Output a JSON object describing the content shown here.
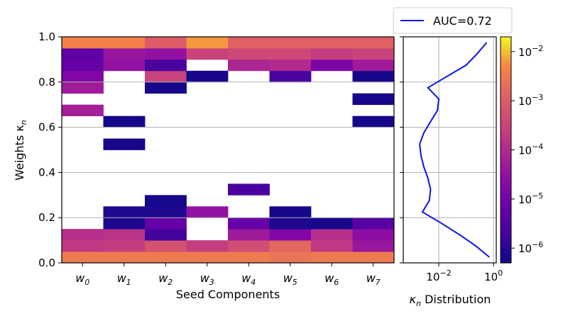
{
  "chart_data": [
    {
      "type": "heatmap",
      "xlabel": "Seed Components",
      "ylabel": "Weights κ",
      "ylabel_sub": "n",
      "xticks": [
        {
          "base": "w",
          "sub": "0"
        },
        {
          "base": "w",
          "sub": "1"
        },
        {
          "base": "w",
          "sub": "2"
        },
        {
          "base": "w",
          "sub": "3"
        },
        {
          "base": "w",
          "sub": "4"
        },
        {
          "base": "w",
          "sub": "5"
        },
        {
          "base": "w",
          "sub": "6"
        },
        {
          "base": "w",
          "sub": "7"
        }
      ],
      "yticks": [
        "0.0",
        "0.2",
        "0.4",
        "0.6",
        "0.8",
        "1.0"
      ],
      "ytick_values": [
        0.0,
        0.2,
        0.4,
        0.6,
        0.8,
        1.0
      ],
      "ylim": [
        0,
        1
      ],
      "bin_height": 0.05,
      "grid": true,
      "colormap": "plasma",
      "color_scale": "log",
      "color_range_exp": [
        -6.3,
        -1.7
      ],
      "columns": [
        {
          "name": "w0",
          "cells": [
            [
              0.0,
              -2.5
            ],
            [
              0.05,
              -3.7
            ],
            [
              0.1,
              -3.9
            ],
            [
              0.65,
              -4.2
            ],
            [
              0.75,
              -4.3
            ],
            [
              0.8,
              -4.8
            ],
            [
              0.85,
              -5.2
            ],
            [
              0.9,
              -5.3
            ],
            [
              0.95,
              -2.4
            ]
          ]
        },
        {
          "name": "w1",
          "cells": [
            [
              0.0,
              -2.5
            ],
            [
              0.05,
              -3.6
            ],
            [
              0.1,
              -3.8
            ],
            [
              0.15,
              -6.1
            ],
            [
              0.2,
              -6.1
            ],
            [
              0.5,
              -6.2
            ],
            [
              0.6,
              -6.2
            ],
            [
              0.85,
              -4.5
            ],
            [
              0.9,
              -4.4
            ],
            [
              0.95,
              -2.4
            ]
          ]
        },
        {
          "name": "w2",
          "cells": [
            [
              0.0,
              -2.5
            ],
            [
              0.05,
              -3.2
            ],
            [
              0.1,
              -5.7
            ],
            [
              0.15,
              -5.2
            ],
            [
              0.2,
              -6.1
            ],
            [
              0.25,
              -6.2
            ],
            [
              0.75,
              -6.2
            ],
            [
              0.8,
              -3.5
            ],
            [
              0.85,
              -5.6
            ],
            [
              0.9,
              -4.5
            ],
            [
              0.95,
              -3.0
            ]
          ]
        },
        {
          "name": "w3",
          "cells": [
            [
              0.0,
              -2.5
            ],
            [
              0.05,
              -3.6
            ],
            [
              0.2,
              -4.5
            ],
            [
              0.8,
              -6.2
            ],
            [
              0.9,
              -3.5
            ],
            [
              0.95,
              -2.2
            ]
          ]
        },
        {
          "name": "w4",
          "cells": [
            [
              0.0,
              -2.5
            ],
            [
              0.05,
              -3.3
            ],
            [
              0.1,
              -4.3
            ],
            [
              0.15,
              -5.2
            ],
            [
              0.3,
              -5.6
            ],
            [
              0.85,
              -4.1
            ],
            [
              0.9,
              -3.4
            ],
            [
              0.95,
              -2.9
            ]
          ]
        },
        {
          "name": "w5",
          "cells": [
            [
              0.0,
              -2.6
            ],
            [
              0.05,
              -2.8
            ],
            [
              0.1,
              -4.8
            ],
            [
              0.15,
              -6.1
            ],
            [
              0.2,
              -6.2
            ],
            [
              0.8,
              -5.6
            ],
            [
              0.85,
              -4.0
            ],
            [
              0.9,
              -3.4
            ],
            [
              0.95,
              -2.9
            ]
          ]
        },
        {
          "name": "w6",
          "cells": [
            [
              0.0,
              -2.5
            ],
            [
              0.05,
              -3.7
            ],
            [
              0.1,
              -3.9
            ],
            [
              0.15,
              -6.2
            ],
            [
              0.85,
              -4.9
            ],
            [
              0.9,
              -3.6
            ],
            [
              0.95,
              -2.9
            ]
          ]
        },
        {
          "name": "w7",
          "cells": [
            [
              0.0,
              -2.5
            ],
            [
              0.05,
              -4.4
            ],
            [
              0.1,
              -4.6
            ],
            [
              0.15,
              -5.4
            ],
            [
              0.6,
              -6.2
            ],
            [
              0.7,
              -6.2
            ],
            [
              0.8,
              -6.2
            ],
            [
              0.85,
              -4.3
            ],
            [
              0.9,
              -3.5
            ],
            [
              0.95,
              -2.9
            ]
          ]
        }
      ]
    },
    {
      "type": "line",
      "xlabel": "κ Distribution",
      "xlabel_sub": "n",
      "xscale": "log",
      "xlim_exp": [
        -3.3,
        0.1
      ],
      "xticks": [
        {
          "base": "10",
          "exp": "−2",
          "value_exp": -2
        },
        {
          "base": "10",
          "exp": "0",
          "value_exp": 0
        }
      ],
      "ylim": [
        0,
        1
      ],
      "legend": {
        "label": "AUC=0.72",
        "position": "top-right"
      },
      "series": [
        {
          "name": "AUC=0.72",
          "color": "#0a14e6",
          "y": [
            0.0,
            0.05,
            0.1,
            0.15,
            0.2,
            0.25,
            0.3,
            0.35,
            0.4,
            0.45,
            0.5,
            0.55,
            0.6,
            0.65,
            0.7,
            0.75,
            0.8,
            0.85,
            0.9,
            0.95
          ],
          "x_log10": [
            -0.15,
            -0.65,
            -1.25,
            -1.9,
            -2.6,
            -2.35,
            -2.3,
            -2.4,
            -2.55,
            -2.65,
            -2.7,
            -2.55,
            -2.3,
            -2.05,
            -2.0,
            -2.4,
            -1.7,
            -1.0,
            -0.6,
            -0.25
          ]
        }
      ]
    },
    {
      "type": "colorbar",
      "scale": "log",
      "ticks": [
        {
          "base": "10",
          "exp": "−2",
          "value_exp": -2
        },
        {
          "base": "10",
          "exp": "−3",
          "value_exp": -3
        },
        {
          "base": "10",
          "exp": "−4",
          "value_exp": -4
        },
        {
          "base": "10",
          "exp": "−5",
          "value_exp": -5
        },
        {
          "base": "10",
          "exp": "−6",
          "value_exp": -6
        }
      ]
    }
  ]
}
